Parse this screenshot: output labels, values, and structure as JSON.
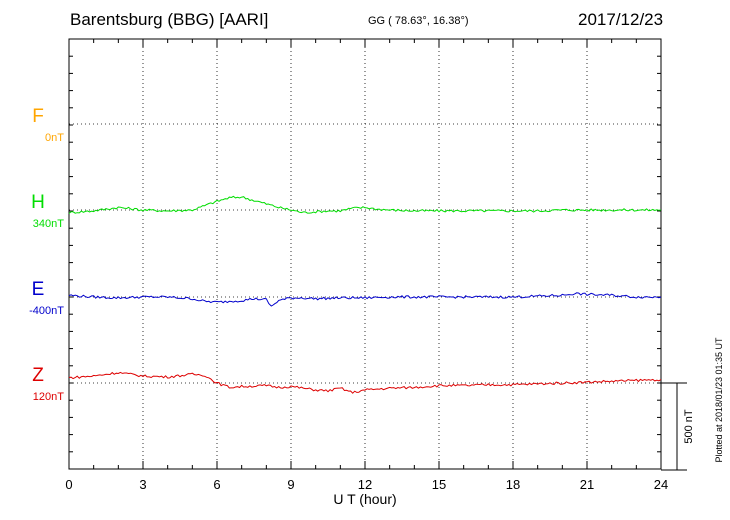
{
  "header": {
    "station": "Barentsburg (BBG)  [AARI]",
    "coords": "GG ( 78.63°,  16.38°)",
    "date": "2017/12/23"
  },
  "chart_data": {
    "type": "line",
    "xlabel": "U T (hour)",
    "xlim": [
      0,
      24
    ],
    "x_ticks": [
      "0",
      "3",
      "6",
      "9",
      "12",
      "15",
      "18",
      "21",
      "24"
    ],
    "scale_label": "500 nT",
    "plotted_at": "Plotted at 2018/01/23 01:35 UT",
    "channels": [
      {
        "name": "F",
        "base": "0nT",
        "color": "#ffa500",
        "points": []
      },
      {
        "name": "H",
        "base": "340nT",
        "color": "#00dd00",
        "points": [
          [
            0,
            -15
          ],
          [
            1,
            -5
          ],
          [
            2,
            15
          ],
          [
            3,
            0
          ],
          [
            4,
            -5
          ],
          [
            5,
            0
          ],
          [
            5.5,
            25
          ],
          [
            6,
            50
          ],
          [
            6.5,
            70
          ],
          [
            7,
            75
          ],
          [
            7.5,
            55
          ],
          [
            8,
            35
          ],
          [
            8.5,
            15
          ],
          [
            9,
            0
          ],
          [
            9.5,
            -15
          ],
          [
            10,
            -10
          ],
          [
            10.5,
            -5
          ],
          [
            11,
            -5
          ],
          [
            11.5,
            10
          ],
          [
            12,
            15
          ],
          [
            12.5,
            5
          ],
          [
            13,
            0
          ],
          [
            14,
            -5
          ],
          [
            15,
            -5
          ],
          [
            16,
            -5
          ],
          [
            17,
            -5
          ],
          [
            18,
            -5
          ],
          [
            19,
            -5
          ],
          [
            20,
            0
          ],
          [
            21,
            0
          ],
          [
            22,
            0
          ],
          [
            23,
            0
          ],
          [
            24,
            0
          ]
        ]
      },
      {
        "name": "E",
        "base": "-400nT",
        "color": "#0000cc",
        "points": [
          [
            0,
            10
          ],
          [
            1,
            0
          ],
          [
            2,
            -5
          ],
          [
            3,
            0
          ],
          [
            4,
            0
          ],
          [
            5,
            -10
          ],
          [
            5.5,
            -25
          ],
          [
            6,
            -30
          ],
          [
            6.5,
            -25
          ],
          [
            7,
            -20
          ],
          [
            7.5,
            -10
          ],
          [
            8,
            -15
          ],
          [
            8.2,
            -55
          ],
          [
            8.5,
            -20
          ],
          [
            9,
            -5
          ],
          [
            9.5,
            -5
          ],
          [
            10,
            -10
          ],
          [
            11,
            -5
          ],
          [
            12,
            -5
          ],
          [
            13,
            0
          ],
          [
            14,
            0
          ],
          [
            15,
            0
          ],
          [
            16,
            0
          ],
          [
            17,
            0
          ],
          [
            18,
            0
          ],
          [
            19,
            5
          ],
          [
            20,
            10
          ],
          [
            20.5,
            20
          ],
          [
            21,
            15
          ],
          [
            22,
            10
          ],
          [
            23,
            0
          ],
          [
            24,
            0
          ]
        ]
      },
      {
        "name": "Z",
        "base": "120nT",
        "color": "#dd0000",
        "points": [
          [
            0,
            30
          ],
          [
            1,
            40
          ],
          [
            2,
            60
          ],
          [
            2.5,
            50
          ],
          [
            3,
            40
          ],
          [
            4,
            35
          ],
          [
            5,
            50
          ],
          [
            5.5,
            45
          ],
          [
            6,
            0
          ],
          [
            6.5,
            -25
          ],
          [
            7,
            -20
          ],
          [
            8,
            -15
          ],
          [
            8.5,
            -25
          ],
          [
            9,
            -20
          ],
          [
            10,
            -40
          ],
          [
            10.5,
            -45
          ],
          [
            11,
            -30
          ],
          [
            11.5,
            -55
          ],
          [
            12,
            -40
          ],
          [
            13,
            -30
          ],
          [
            14,
            -25
          ],
          [
            15,
            -15
          ],
          [
            16,
            -15
          ],
          [
            17,
            -10
          ],
          [
            18,
            -10
          ],
          [
            19,
            -5
          ],
          [
            20,
            0
          ],
          [
            21,
            5
          ],
          [
            22,
            10
          ],
          [
            23,
            15
          ],
          [
            24,
            20
          ]
        ]
      }
    ]
  }
}
